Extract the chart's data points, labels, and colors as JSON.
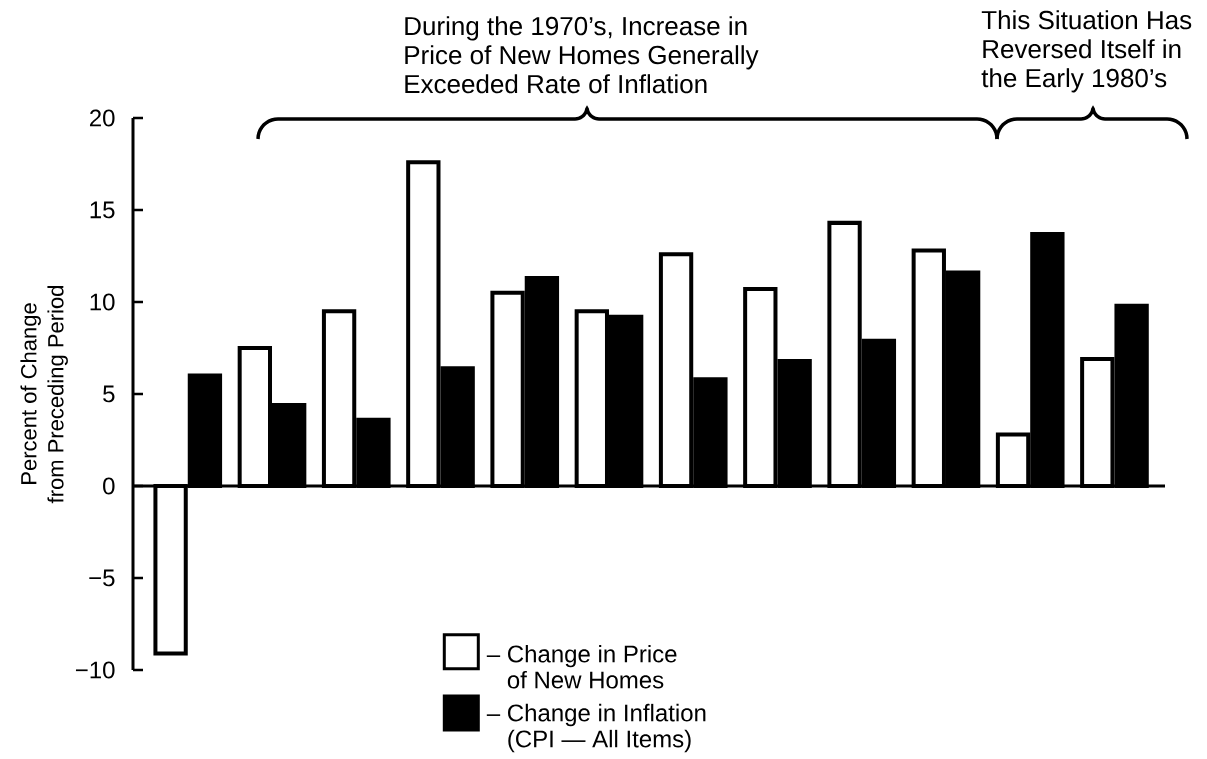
{
  "chart_data": {
    "type": "bar",
    "annotations": [
      "During the 1970’s, Increase in Price of New Homes Generally Exceeded Rate of Inflation",
      "This Situation Has Reversed Itself in the Early 1980’s"
    ],
    "ylabel": "Percent of Change from Preceding Period",
    "categories": [
      null,
      null,
      null,
      null,
      null,
      null,
      null,
      null,
      null,
      null,
      null,
      null
    ],
    "series": [
      {
        "name": "– Change in Price of New Homes",
        "color": "#ffffff",
        "values": [
          -9.1,
          7.5,
          9.5,
          17.6,
          10.5,
          9.5,
          12.6,
          10.7,
          14.3,
          12.8,
          2.8,
          6.9
        ]
      },
      {
        "name": "– Change in Inflation (CPI — All Items)",
        "color": "#000000",
        "values": [
          6.0,
          4.4,
          3.6,
          6.4,
          11.3,
          9.2,
          5.8,
          6.8,
          7.9,
          11.6,
          13.7,
          9.8
        ]
      }
    ],
    "ylim": [
      -10,
      20
    ],
    "yticks": [
      {
        "value": -10,
        "label": "−10"
      },
      {
        "value": -5,
        "label": "−5"
      },
      0,
      5,
      10,
      15,
      20
    ],
    "legend": "bottom"
  }
}
